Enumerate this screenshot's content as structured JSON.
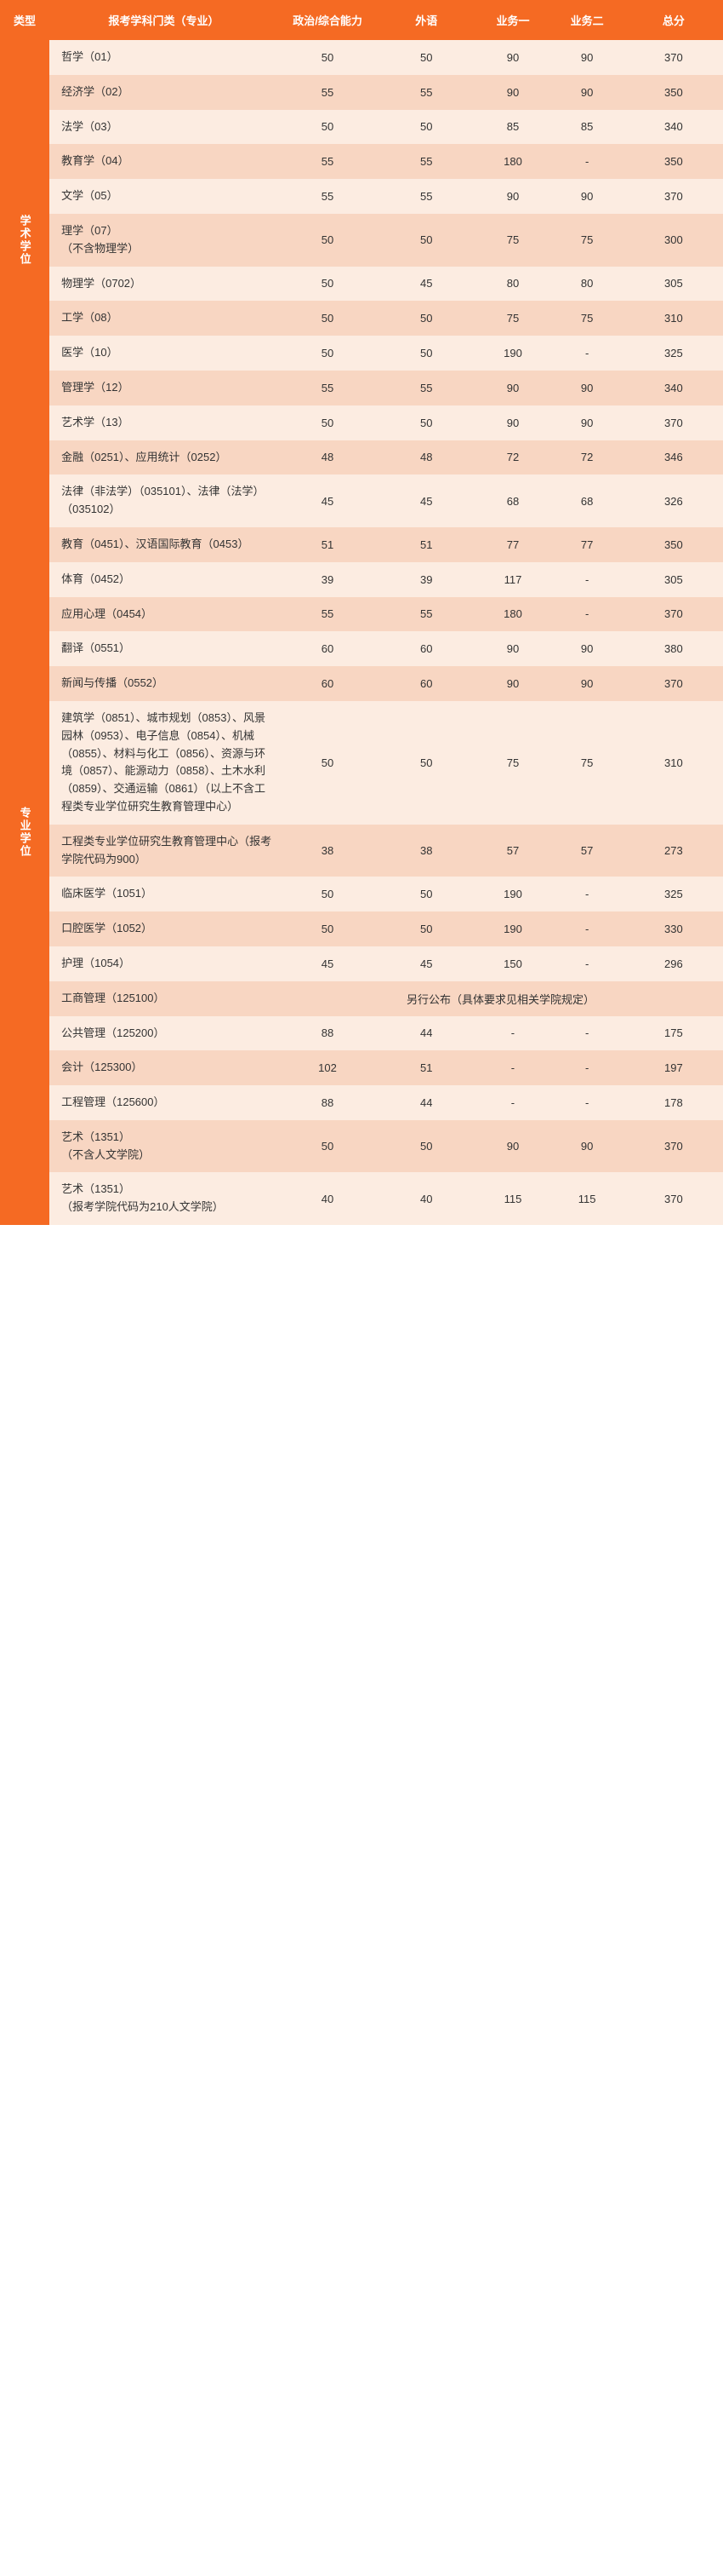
{
  "headers": [
    "类型",
    "报考学科门类（专业）",
    "政治/综合能力",
    "外语",
    "业务一",
    "业务二",
    "总分"
  ],
  "sections": [
    {
      "category": "学术学位",
      "rows": [
        {
          "major": "哲学（01）",
          "s1": "50",
          "s2": "50",
          "s3": "90",
          "s4": "90",
          "total": "370"
        },
        {
          "major": "经济学（02）",
          "s1": "55",
          "s2": "55",
          "s3": "90",
          "s4": "90",
          "total": "350"
        },
        {
          "major": "法学（03）",
          "s1": "50",
          "s2": "50",
          "s3": "85",
          "s4": "85",
          "total": "340"
        },
        {
          "major": "教育学（04）",
          "s1": "55",
          "s2": "55",
          "s3": "180",
          "s4": "-",
          "total": "350"
        },
        {
          "major": "文学（05）",
          "s1": "55",
          "s2": "55",
          "s3": "90",
          "s4": "90",
          "total": "370"
        },
        {
          "major": "理学（07）\n（不含物理学）",
          "s1": "50",
          "s2": "50",
          "s3": "75",
          "s4": "75",
          "total": "300"
        },
        {
          "major": "物理学（0702）",
          "s1": "50",
          "s2": "45",
          "s3": "80",
          "s4": "80",
          "total": "305"
        },
        {
          "major": "工学（08）",
          "s1": "50",
          "s2": "50",
          "s3": "75",
          "s4": "75",
          "total": "310"
        },
        {
          "major": "医学（10）",
          "s1": "50",
          "s2": "50",
          "s3": "190",
          "s4": "-",
          "total": "325"
        },
        {
          "major": "管理学（12）",
          "s1": "55",
          "s2": "55",
          "s3": "90",
          "s4": "90",
          "total": "340"
        },
        {
          "major": "艺术学（13）",
          "s1": "50",
          "s2": "50",
          "s3": "90",
          "s4": "90",
          "total": "370"
        }
      ]
    },
    {
      "category": "专业学位",
      "rows": [
        {
          "major": "金融（0251）、应用统计（0252）",
          "s1": "48",
          "s2": "48",
          "s3": "72",
          "s4": "72",
          "total": "346"
        },
        {
          "major": "法律（非法学）（035101）、法律（法学）（035102）",
          "s1": "45",
          "s2": "45",
          "s3": "68",
          "s4": "68",
          "total": "326"
        },
        {
          "major": "教育（0451）、汉语国际教育（0453）",
          "s1": "51",
          "s2": "51",
          "s3": "77",
          "s4": "77",
          "total": "350"
        },
        {
          "major": "体育（0452）",
          "s1": "39",
          "s2": "39",
          "s3": "117",
          "s4": "-",
          "total": "305"
        },
        {
          "major": "应用心理（0454）",
          "s1": "55",
          "s2": "55",
          "s3": "180",
          "s4": "-",
          "total": "370"
        },
        {
          "major": "翻译（0551）",
          "s1": "60",
          "s2": "60",
          "s3": "90",
          "s4": "90",
          "total": "380"
        },
        {
          "major": "新闻与传播（0552）",
          "s1": "60",
          "s2": "60",
          "s3": "90",
          "s4": "90",
          "total": "370"
        },
        {
          "major": "建筑学（0851）、城市规划（0853）、风景园林（0953）、电子信息（0854）、机械（0855）、材料与化工（0856）、资源与环境（0857）、能源动力（0858）、土木水利（0859）、交通运输（0861）（以上不含工程类专业学位研究生教育管理中心）",
          "s1": "50",
          "s2": "50",
          "s3": "75",
          "s4": "75",
          "total": "310"
        },
        {
          "major": "工程类专业学位研究生教育管理中心（报考学院代码为900）",
          "s1": "38",
          "s2": "38",
          "s3": "57",
          "s4": "57",
          "total": "273"
        },
        {
          "major": "临床医学（1051）",
          "s1": "50",
          "s2": "50",
          "s3": "190",
          "s4": "-",
          "total": "325"
        },
        {
          "major": "口腔医学（1052）",
          "s1": "50",
          "s2": "50",
          "s3": "190",
          "s4": "-",
          "total": "330"
        },
        {
          "major": "护理（1054）",
          "s1": "45",
          "s2": "45",
          "s3": "150",
          "s4": "-",
          "total": "296"
        },
        {
          "major": "工商管理（125100）",
          "merged": "另行公布（具体要求见相关学院规定）"
        },
        {
          "major": "公共管理（125200）",
          "s1": "88",
          "s2": "44",
          "s3": "-",
          "s4": "-",
          "total": "175"
        },
        {
          "major": "会计（125300）",
          "s1": "102",
          "s2": "51",
          "s3": "-",
          "s4": "-",
          "total": "197"
        },
        {
          "major": "工程管理（125600）",
          "s1": "88",
          "s2": "44",
          "s3": "-",
          "s4": "-",
          "total": "178"
        },
        {
          "major": "艺术（1351）\n（不含人文学院）",
          "s1": "50",
          "s2": "50",
          "s3": "90",
          "s4": "90",
          "total": "370"
        },
        {
          "major": "艺术（1351）\n（报考学院代码为210人文学院）",
          "s1": "40",
          "s2": "40",
          "s3": "115",
          "s4": "115",
          "total": "370"
        }
      ]
    }
  ]
}
